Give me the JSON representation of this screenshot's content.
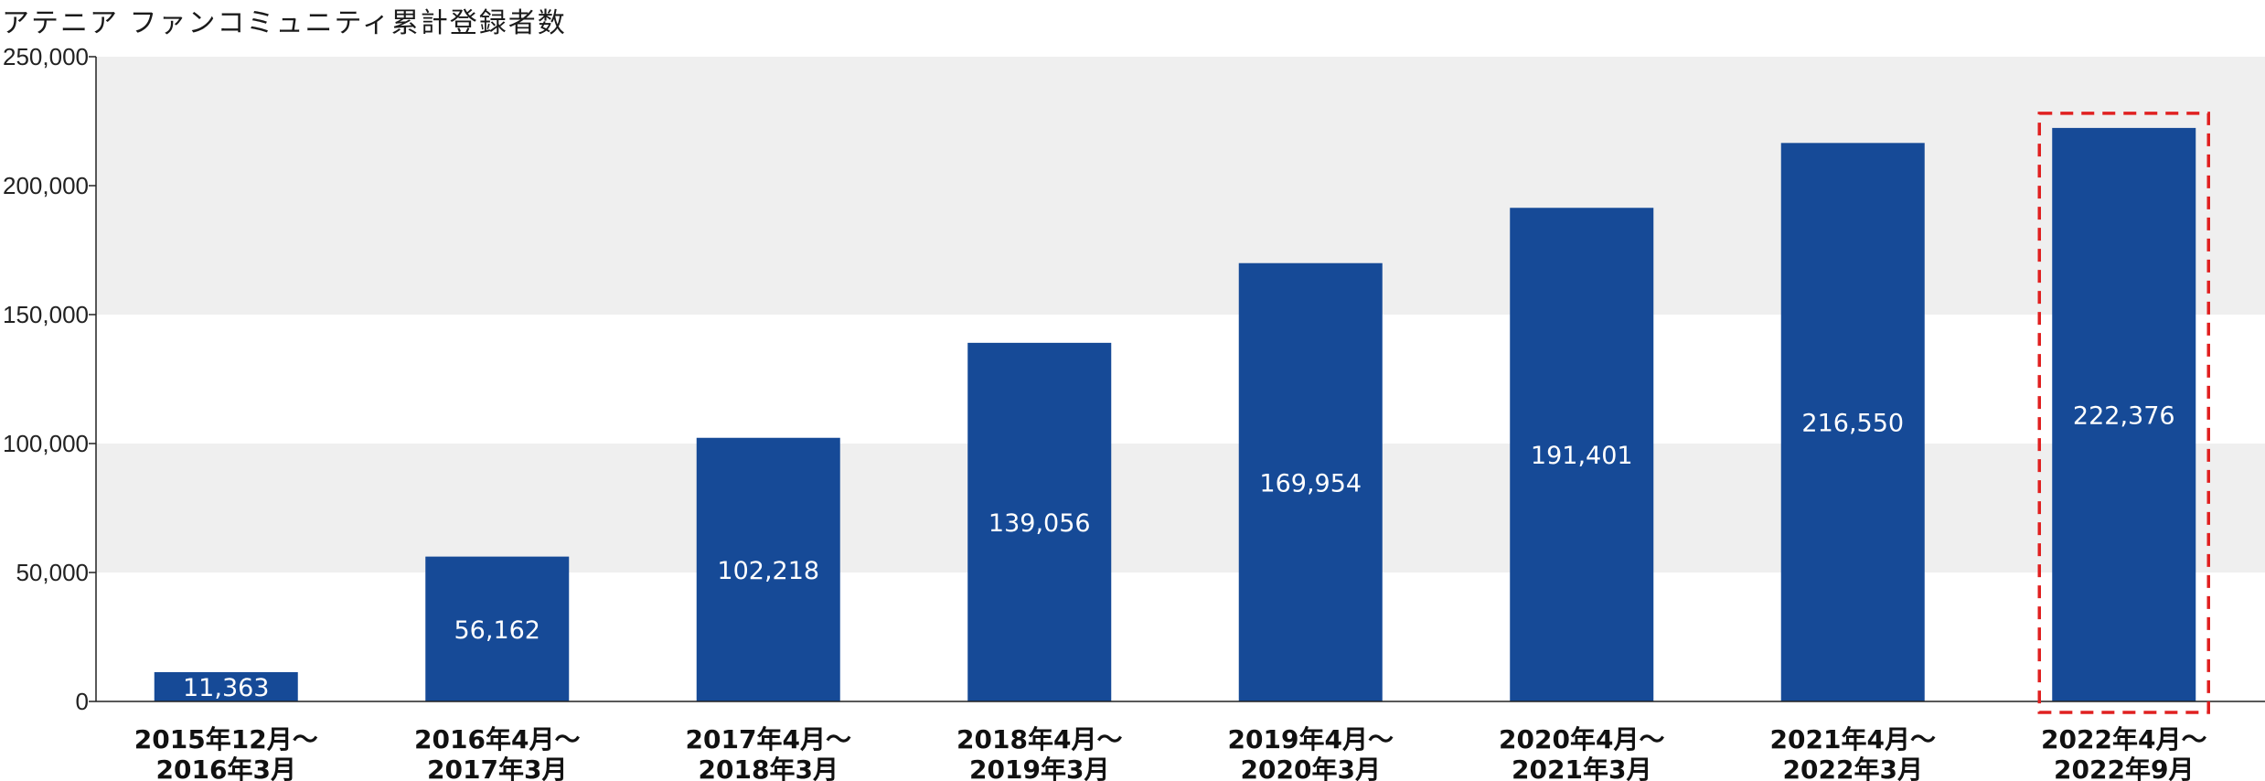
{
  "chart_data": {
    "type": "bar",
    "title": "アテニア ファンコミュニティ累計登録者数",
    "categories": [
      [
        "2015年12月～",
        "2016年3月"
      ],
      [
        "2016年4月～",
        "2017年3月"
      ],
      [
        "2017年4月～",
        "2018年3月"
      ],
      [
        "2018年4月～",
        "2019年3月"
      ],
      [
        "2019年4月～",
        "2020年3月"
      ],
      [
        "2020年4月～",
        "2021年3月"
      ],
      [
        "2021年4月～",
        "2022年3月"
      ],
      [
        "2022年4月～",
        "2022年9月"
      ]
    ],
    "values": [
      11363,
      56162,
      102218,
      139056,
      169954,
      191401,
      216550,
      222376
    ],
    "data_labels": [
      "11,363",
      "56,162",
      "102,218",
      "139,056",
      "169,954",
      "191,401",
      "216,550",
      "222,376"
    ],
    "ylim": [
      0,
      250000
    ],
    "yticks": [
      0,
      50000,
      100000,
      150000,
      200000,
      250000
    ],
    "ytick_labels": [
      "0",
      "50,000",
      "100,000",
      "150,000",
      "200,000",
      "250,000"
    ],
    "xlabel": "",
    "ylabel": "",
    "highlighted_index": 7,
    "grid": "alternating horizontal bands",
    "colors": {
      "bar": "#164a97",
      "band": "#efefef",
      "highlight": "#e02020"
    }
  }
}
